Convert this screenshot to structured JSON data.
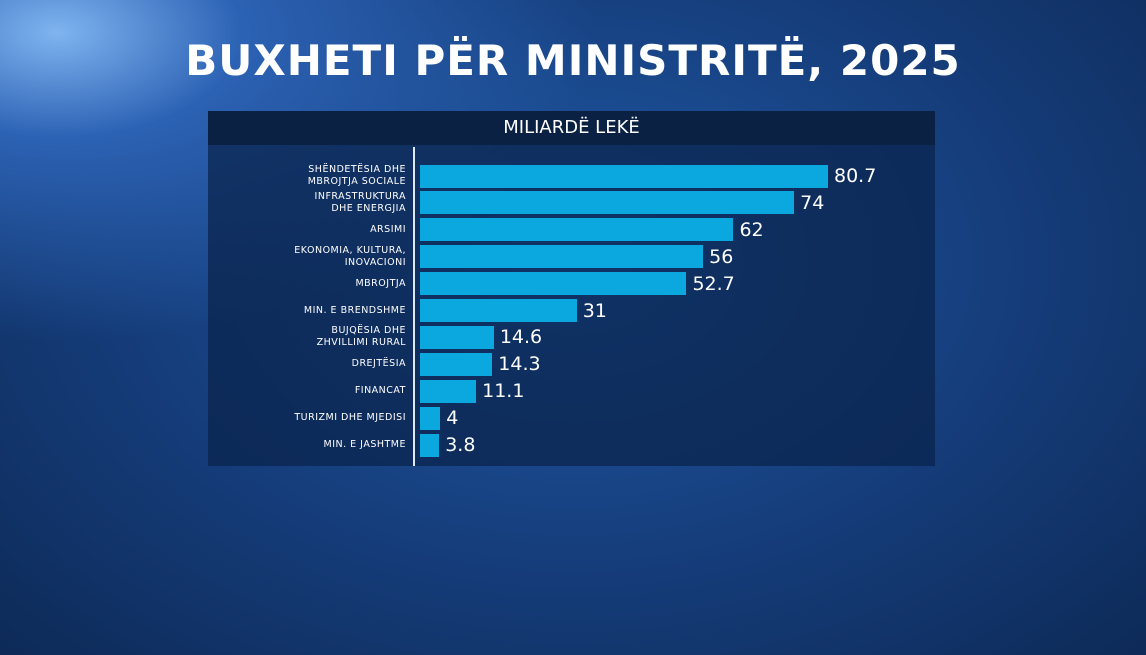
{
  "chart_data": {
    "type": "bar",
    "orientation": "horizontal",
    "title": "BUXHETI PËR MINISTRITË, 2025",
    "subtitle": "MILIARDË LEKË",
    "categories": [
      "SHËNDETËSIA DHE\nMBROJTJA SOCIALE",
      "INFRASTRUKTURA\nDHE ENERGJIA",
      "ARSIMI",
      "EKONOMIA, KULTURA,\nINOVACIONI",
      "MBROJTJA",
      "MIN. E BRENDSHME",
      "BUJQËSIA DHE\nZHVILLIMI RURAL",
      "DREJTËSIA",
      "FINANCAT",
      "TURIZMI DHE MJEDISI",
      "MIN. E JASHTME"
    ],
    "values": [
      80.7,
      74,
      62,
      56,
      52.7,
      31,
      14.6,
      14.3,
      11.1,
      4,
      3.8
    ],
    "color": "#0aa8de"
  }
}
